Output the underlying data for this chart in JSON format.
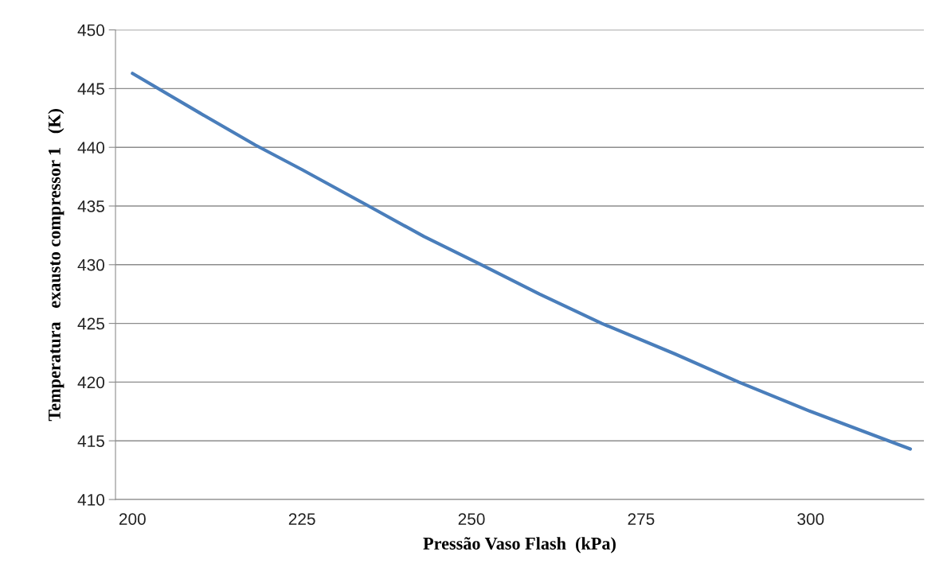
{
  "chart_data": {
    "type": "line",
    "xlabel": "Pressão Vaso Flash  (kPa)",
    "ylabel": "Temperatura   exausto compressor 1   (K)",
    "x": [
      200,
      210,
      218.1,
      225,
      234.5,
      243,
      251.8,
      260,
      269.2,
      280,
      289.4,
      300,
      311.5,
      314.7
    ],
    "series": [
      {
        "color": "#4a7ebb",
        "values": [
          446.3,
          442.9,
          440.2,
          438.1,
          435.1,
          432.4,
          429.9,
          427.5,
          425.0,
          422.4,
          420.0,
          417.5,
          415.0,
          414.3
        ]
      }
    ],
    "xlim": [
      197.5,
      316.7
    ],
    "xticks": [
      200,
      225,
      250,
      275,
      300
    ],
    "ylim": [
      410,
      450
    ],
    "yticks": [
      410,
      415,
      420,
      425,
      430,
      435,
      440,
      445,
      450
    ],
    "grid": "y",
    "marker": "none",
    "line_style": "solid"
  }
}
